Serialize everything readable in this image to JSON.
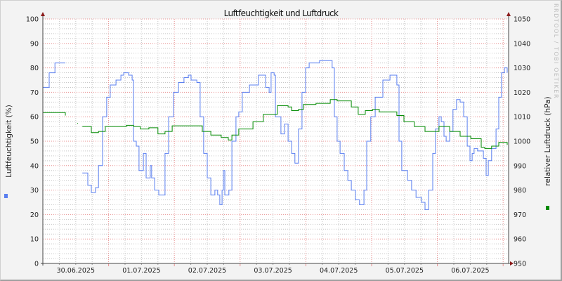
{
  "chart_data": {
    "type": "line",
    "title": "Luftfeuchtigkeit und Luftdruck",
    "ylabel": "Luftfeuchtigkeit (%)",
    "y2label": "relativer Luftdruck (hPa)",
    "watermark": "RRDTOOL / TOBI OETIKER",
    "xlim": [
      "2025-06-30 00:00",
      "2025-07-07 02:00"
    ],
    "ylim": [
      0,
      100
    ],
    "y2lim": [
      950,
      1050
    ],
    "yticks": [
      "0",
      "10",
      "20",
      "30",
      "40",
      "50",
      "60",
      "70",
      "80",
      "90",
      "100"
    ],
    "y2ticks": [
      "950",
      "960",
      "970",
      "980",
      "990",
      "1000",
      "1010",
      "1020",
      "1030",
      "1040",
      "1050"
    ],
    "xticks": [
      "30.06.2025",
      "01.07.2025",
      "02.07.2025",
      "03.07.2025",
      "04.07.2025",
      "05.07.2025",
      "06.07.2025"
    ],
    "grid": true,
    "legend": "color markers only (left: humidity, right: pressure)",
    "colors": {
      "humidity": "#5a7ff0",
      "pressure": "#008a00",
      "major_grid": "#e89090",
      "minor_grid": "#c8c8c8",
      "arrow": "#8b1a1a"
    },
    "series": [
      {
        "axis": "left",
        "color": "#5a7ff0",
        "points": [
          [
            "2025-06-30 00:00",
            72
          ],
          [
            "2025-06-30 02:18",
            78
          ],
          [
            "2025-06-30 04:24",
            82
          ],
          [
            "2025-06-30 08:12",
            82
          ],
          [
            "2025-06-30 08:42",
            null
          ],
          [
            "2025-06-30 14:24",
            37
          ],
          [
            "2025-06-30 16:24",
            32
          ],
          [
            "2025-06-30 17:42",
            29
          ],
          [
            "2025-06-30 19:12",
            31
          ],
          [
            "2025-06-30 20:18",
            40
          ],
          [
            "2025-06-30 21:48",
            60
          ],
          [
            "2025-06-30 23:18",
            68
          ],
          [
            "2025-07-01 00:36",
            73
          ],
          [
            "2025-07-01 02:42",
            75
          ],
          [
            "2025-07-01 04:30",
            77
          ],
          [
            "2025-07-01 05:30",
            78
          ],
          [
            "2025-07-01 07:18",
            77
          ],
          [
            "2025-07-01 08:36",
            75
          ],
          [
            "2025-07-01 09:06",
            50
          ],
          [
            "2025-07-01 10:06",
            48
          ],
          [
            "2025-07-01 11:06",
            38
          ],
          [
            "2025-07-01 12:42",
            45
          ],
          [
            "2025-07-01 13:42",
            35
          ],
          [
            "2025-07-01 15:12",
            40
          ],
          [
            "2025-07-01 15:42",
            35
          ],
          [
            "2025-07-01 16:48",
            30
          ],
          [
            "2025-07-01 18:18",
            28
          ],
          [
            "2025-07-01 19:48",
            28
          ],
          [
            "2025-07-01 20:36",
            45
          ],
          [
            "2025-07-01 21:54",
            60
          ],
          [
            "2025-07-01 23:42",
            70
          ],
          [
            "2025-07-02 01:30",
            74
          ],
          [
            "2025-07-02 03:30",
            76
          ],
          [
            "2025-07-02 05:06",
            77
          ],
          [
            "2025-07-02 06:06",
            75
          ],
          [
            "2025-07-02 08:12",
            74
          ],
          [
            "2025-07-02 09:24",
            60
          ],
          [
            "2025-07-02 10:42",
            45
          ],
          [
            "2025-07-02 12:00",
            35
          ],
          [
            "2025-07-02 13:18",
            28
          ],
          [
            "2025-07-02 14:48",
            30
          ],
          [
            "2025-07-02 15:48",
            28
          ],
          [
            "2025-07-02 16:36",
            24
          ],
          [
            "2025-07-02 17:24",
            30
          ],
          [
            "2025-07-02 17:54",
            38
          ],
          [
            "2025-07-02 18:24",
            28
          ],
          [
            "2025-07-02 19:54",
            30
          ],
          [
            "2025-07-02 21:00",
            50
          ],
          [
            "2025-07-02 22:30",
            60
          ],
          [
            "2025-07-02 23:30",
            62
          ],
          [
            "2025-07-03 00:48",
            70
          ],
          [
            "2025-07-03 03:24",
            73
          ],
          [
            "2025-07-03 06:42",
            77
          ],
          [
            "2025-07-03 09:18",
            72
          ],
          [
            "2025-07-03 10:36",
            70
          ],
          [
            "2025-07-03 11:18",
            78
          ],
          [
            "2025-07-03 12:24",
            77
          ],
          [
            "2025-07-03 12:54",
            60
          ],
          [
            "2025-07-03 14:54",
            53
          ],
          [
            "2025-07-03 16:12",
            57
          ],
          [
            "2025-07-03 17:30",
            50
          ],
          [
            "2025-07-03 18:48",
            45
          ],
          [
            "2025-07-03 20:00",
            41
          ],
          [
            "2025-07-03 21:18",
            55
          ],
          [
            "2025-07-03 22:36",
            70
          ],
          [
            "2025-07-03 23:54",
            80
          ],
          [
            "2025-07-04 01:12",
            82
          ],
          [
            "2025-07-04 05:00",
            83
          ],
          [
            "2025-07-04 08:54",
            83
          ],
          [
            "2025-07-04 09:36",
            80
          ],
          [
            "2025-07-04 10:24",
            60
          ],
          [
            "2025-07-04 11:24",
            50
          ],
          [
            "2025-07-04 12:30",
            45
          ],
          [
            "2025-07-04 14:00",
            38
          ],
          [
            "2025-07-04 15:18",
            34
          ],
          [
            "2025-07-04 16:36",
            30
          ],
          [
            "2025-07-04 18:06",
            26
          ],
          [
            "2025-07-04 19:36",
            24
          ],
          [
            "2025-07-04 21:12",
            30
          ],
          [
            "2025-07-04 22:12",
            50
          ],
          [
            "2025-07-04 23:42",
            60
          ],
          [
            "2025-07-05 01:18",
            68
          ],
          [
            "2025-07-05 04:06",
            75
          ],
          [
            "2025-07-05 06:42",
            77
          ],
          [
            "2025-07-05 09:12",
            73
          ],
          [
            "2025-07-05 10:00",
            50
          ],
          [
            "2025-07-05 11:00",
            38
          ],
          [
            "2025-07-05 13:06",
            34
          ],
          [
            "2025-07-05 14:36",
            30
          ],
          [
            "2025-07-05 16:12",
            27
          ],
          [
            "2025-07-05 18:12",
            25
          ],
          [
            "2025-07-05 19:30",
            22
          ],
          [
            "2025-07-05 20:48",
            30
          ],
          [
            "2025-07-05 22:18",
            45
          ],
          [
            "2025-07-05 23:18",
            55
          ],
          [
            "2025-07-06 00:36",
            60
          ],
          [
            "2025-07-06 01:24",
            58
          ],
          [
            "2025-07-06 02:24",
            52
          ],
          [
            "2025-07-06 03:12",
            50
          ],
          [
            "2025-07-06 04:30",
            54
          ],
          [
            "2025-07-06 05:42",
            63
          ],
          [
            "2025-07-06 07:00",
            67
          ],
          [
            "2025-07-06 08:18",
            66
          ],
          [
            "2025-07-06 09:36",
            60
          ],
          [
            "2025-07-06 10:54",
            48
          ],
          [
            "2025-07-06 11:54",
            42
          ],
          [
            "2025-07-06 12:42",
            45
          ],
          [
            "2025-07-06 13:24",
            47
          ],
          [
            "2025-07-06 14:42",
            46
          ],
          [
            "2025-07-06 16:48",
            43
          ],
          [
            "2025-07-06 17:48",
            36
          ],
          [
            "2025-07-06 18:36",
            42
          ],
          [
            "2025-07-06 19:48",
            47
          ],
          [
            "2025-07-06 21:24",
            55
          ],
          [
            "2025-07-06 22:24",
            68
          ],
          [
            "2025-07-06 23:24",
            78
          ],
          [
            "2025-07-07 00:30",
            80
          ],
          [
            "2025-07-07 01:30",
            78
          ]
        ]
      },
      {
        "axis": "right",
        "color": "#008a00",
        "points": [
          [
            "2025-06-30 00:00",
            1011.7
          ],
          [
            "2025-06-30 08:12",
            1010.5
          ],
          [
            "2025-06-30 08:42",
            null
          ],
          [
            "2025-06-30 12:36",
            1007.3
          ],
          [
            "2025-06-30 12:50",
            1007.3
          ],
          [
            "2025-06-30 13:00",
            null
          ],
          [
            "2025-06-30 14:24",
            1006
          ],
          [
            "2025-06-30 17:42",
            1003.5
          ],
          [
            "2025-06-30 20:18",
            1004
          ],
          [
            "2025-06-30 22:48",
            1006
          ],
          [
            "2025-07-01 01:24",
            1006
          ],
          [
            "2025-07-01 06:30",
            1006.5
          ],
          [
            "2025-07-01 09:06",
            1006
          ],
          [
            "2025-07-01 11:36",
            1005
          ],
          [
            "2025-07-01 14:42",
            1005.5
          ],
          [
            "2025-07-01 18:00",
            1003
          ],
          [
            "2025-07-01 20:36",
            1004
          ],
          [
            "2025-07-01 23:12",
            1006.3
          ],
          [
            "2025-07-02 08:12",
            1006.3
          ],
          [
            "2025-07-02 10:12",
            1004
          ],
          [
            "2025-07-02 13:18",
            1002.5
          ],
          [
            "2025-07-02 17:06",
            1001.5
          ],
          [
            "2025-07-02 19:42",
            1000.5
          ],
          [
            "2025-07-02 21:00",
            1002.5
          ],
          [
            "2025-07-02 23:30",
            1005
          ],
          [
            "2025-07-03 04:42",
            1008
          ],
          [
            "2025-07-03 08:30",
            1011
          ],
          [
            "2025-07-03 13:36",
            1014.5
          ],
          [
            "2025-07-03 17:30",
            1014
          ],
          [
            "2025-07-03 18:48",
            1012.5
          ],
          [
            "2025-07-03 21:18",
            1013
          ],
          [
            "2025-07-03 23:06",
            1015
          ],
          [
            "2025-07-04 03:42",
            1015.5
          ],
          [
            "2025-07-04 08:54",
            1017
          ],
          [
            "2025-07-04 11:24",
            1016.5
          ],
          [
            "2025-07-04 16:36",
            1014
          ],
          [
            "2025-07-04 19:06",
            1011
          ],
          [
            "2025-07-04 21:42",
            1012.5
          ],
          [
            "2025-07-05 00:18",
            1013
          ],
          [
            "2025-07-05 02:48",
            1012
          ],
          [
            "2025-07-05 09:12",
            1010.5
          ],
          [
            "2025-07-05 11:48",
            1008
          ],
          [
            "2025-07-05 15:36",
            1006
          ],
          [
            "2025-07-05 19:30",
            1004
          ],
          [
            "2025-07-06 00:36",
            1006
          ],
          [
            "2025-07-06 04:30",
            1004
          ],
          [
            "2025-07-06 08:18",
            1002
          ],
          [
            "2025-07-06 12:12",
            1001
          ],
          [
            "2025-07-06 16:00",
            997.5
          ],
          [
            "2025-07-06 17:18",
            997
          ],
          [
            "2025-07-06 19:48",
            998
          ],
          [
            "2025-07-06 22:24",
            999.5
          ],
          [
            "2025-07-07 01:30",
            998.5
          ]
        ]
      }
    ]
  }
}
